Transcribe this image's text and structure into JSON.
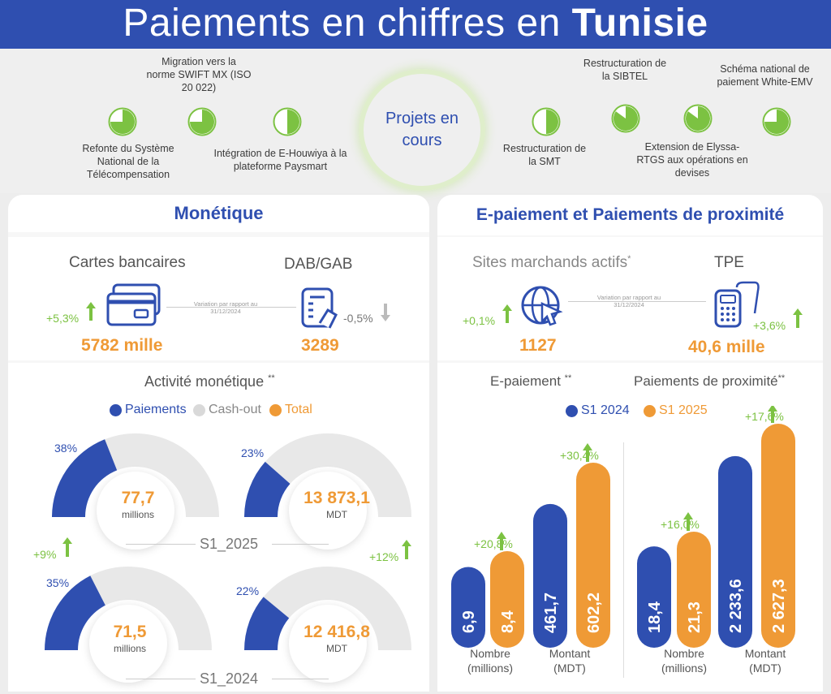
{
  "header": {
    "title_light": "Paiements en chiffres en",
    "title_bold": "Tunisie"
  },
  "projects": {
    "center": "Projets en cours",
    "items": [
      {
        "label": "Refonte du Système National de la Télécompensation",
        "fill": 0.75
      },
      {
        "label": "Migration vers la norme SWIFT MX (ISO 20 022)",
        "fill": 0.75
      },
      {
        "label": "Intégration de E-Houwiya à la plateforme Paysmart",
        "fill": 0.5
      },
      {
        "label": "Restructuration de la SMT",
        "fill": 0.5
      },
      {
        "label": "Restructuration de la SIBTEL",
        "fill": 0.85
      },
      {
        "label": "Extension de Elyssa-RTGS aux opérations en devises",
        "fill": 0.85
      },
      {
        "label": "Schéma national de paiement White-EMV",
        "fill": 0.75
      }
    ]
  },
  "monetique": {
    "title": "Monétique",
    "cartes_label": "Cartes bancaires",
    "cartes_value": "5782 mille",
    "cartes_var": "+5,3%",
    "dab_label": "DAB/GAB",
    "dab_value": "3289",
    "dab_var": "-0,5%",
    "variation_note": "Variation par rapport au 31/12/2024"
  },
  "activite": {
    "title": "Activité monétique",
    "star": "**",
    "legend": [
      "Paiements",
      "Cash-out",
      "Total"
    ],
    "s1_2025_label": "S1_2025",
    "s1_2024_label": "S1_2024",
    "var_count": "+9%",
    "var_amount": "+12%",
    "count_unit": "millions",
    "amount_unit": "MDT"
  },
  "epaiement": {
    "title": "E-paiement et Paiements de proximité",
    "sites_label": "Sites marchands actifs",
    "sites_star": "*",
    "sites_value": "1127",
    "sites_var": "+0,1%",
    "tpe_label": "TPE",
    "tpe_value": "40,6 mille",
    "tpe_var": "+3,6%",
    "variation_note": "Variation par rapport au 31/12/2024",
    "epay_label": "E-paiement",
    "prox_label": "Paiements de proximité",
    "star": "**",
    "legend": [
      "S1 2024",
      "S1 2025"
    ],
    "nombre_label": "Nombre (millions)",
    "montant_label": "Montant (MDT)"
  },
  "colors": {
    "blue": "#2f4fb0",
    "orange": "#ef9a36",
    "grey": "#e6e6e6",
    "green": "#7cc242"
  },
  "chart_data": [
    {
      "type": "pie",
      "title": "S1_2025 Nombre",
      "center_value": "77,7",
      "center_unit": "millions",
      "slices": [
        {
          "name": "Paiements",
          "value": 38
        },
        {
          "name": "Cash-out",
          "value": 62
        }
      ],
      "label": "38%"
    },
    {
      "type": "pie",
      "title": "S1_2025 Montant",
      "center_value": "13 873,1",
      "center_unit": "MDT",
      "slices": [
        {
          "name": "Paiements",
          "value": 23
        },
        {
          "name": "Cash-out",
          "value": 77
        }
      ],
      "label": "23%"
    },
    {
      "type": "pie",
      "title": "S1_2024 Nombre",
      "center_value": "71,5",
      "center_unit": "millions",
      "slices": [
        {
          "name": "Paiements",
          "value": 35
        },
        {
          "name": "Cash-out",
          "value": 65
        }
      ],
      "label": "35%"
    },
    {
      "type": "pie",
      "title": "S1_2024 Montant",
      "center_value": "12 416,8",
      "center_unit": "MDT",
      "slices": [
        {
          "name": "Paiements",
          "value": 22
        },
        {
          "name": "Cash-out",
          "value": 78
        }
      ],
      "label": "22%"
    },
    {
      "type": "bar",
      "title": "E-paiement",
      "categories": [
        "Nombre (millions)",
        "Montant (MDT)"
      ],
      "series": [
        {
          "name": "S1 2024",
          "values": [
            6.9,
            461.7
          ],
          "labels": [
            "6,9",
            "461,7"
          ]
        },
        {
          "name": "S1 2025",
          "values": [
            8.4,
            602.2
          ],
          "labels": [
            "8,4",
            "602,2"
          ]
        }
      ],
      "variations": [
        "+20,8%",
        "+30,4%"
      ]
    },
    {
      "type": "bar",
      "title": "Paiements de proximité",
      "categories": [
        "Nombre (millions)",
        "Montant (MDT)"
      ],
      "series": [
        {
          "name": "S1 2024",
          "values": [
            18.4,
            2233.6
          ],
          "labels": [
            "18,4",
            "2 233,6"
          ]
        },
        {
          "name": "S1 2025",
          "values": [
            21.3,
            2627.3
          ],
          "labels": [
            "21,3",
            "2 627,3"
          ]
        }
      ],
      "variations": [
        "+16,0%",
        "+17,6%"
      ]
    }
  ]
}
